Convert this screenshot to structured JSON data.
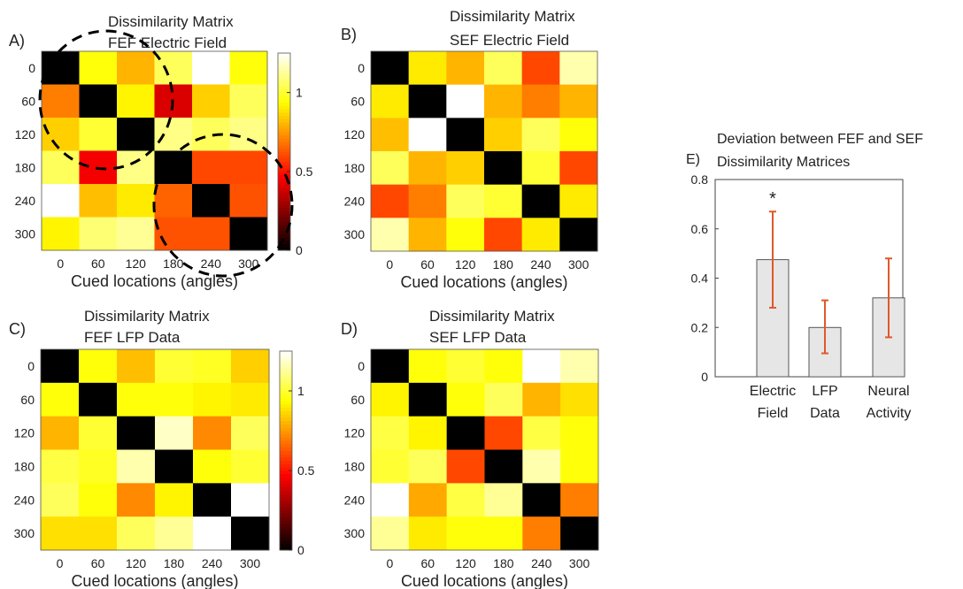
{
  "chart_data": [
    {
      "panel_id": "heatmap_A",
      "type": "heatmap",
      "panel_label": "A)",
      "title_lines": [
        "Dissimilarity Matrix",
        "FEF Electric Field"
      ],
      "xlabel": "Cued locations (angles)",
      "row_labels": [
        "0",
        "60",
        "120",
        "180",
        "240",
        "300"
      ],
      "col_labels": [
        "0",
        "60",
        "120",
        "180",
        "240",
        "300"
      ],
      "colorbar": true,
      "colorbar_ticks": [
        "1",
        "0.5",
        "0"
      ],
      "colorbar_tick_values": [
        1,
        0.5,
        0
      ],
      "color_range": [
        0,
        1.25
      ],
      "annotations": "two dashed circles around the 0-120 and 180-300 blocks",
      "matrix": [
        [
          0.0,
          0.95,
          0.8,
          1.05,
          1.25,
          0.95
        ],
        [
          0.7,
          0.0,
          0.92,
          0.4,
          0.85,
          1.05
        ],
        [
          0.85,
          1.0,
          0.0,
          1.1,
          1.05,
          1.1
        ],
        [
          1.05,
          0.45,
          1.1,
          0.0,
          0.6,
          0.6
        ],
        [
          1.25,
          0.82,
          0.9,
          0.65,
          0.0,
          0.62
        ],
        [
          0.92,
          1.08,
          1.12,
          0.62,
          0.62,
          0.0
        ]
      ]
    },
    {
      "panel_id": "heatmap_B",
      "type": "heatmap",
      "panel_label": "B)",
      "title_lines": [
        "Dissimilarity Matrix",
        "SEF Electric Field"
      ],
      "xlabel": "Cued locations (angles)",
      "row_labels": [
        "0",
        "60",
        "120",
        "180",
        "240",
        "300"
      ],
      "col_labels": [
        "0",
        "60",
        "120",
        "180",
        "240",
        "300"
      ],
      "colorbar": false,
      "color_range": [
        0,
        1.25
      ],
      "matrix": [
        [
          0.0,
          0.9,
          0.8,
          1.05,
          0.6,
          1.15
        ],
        [
          0.9,
          0.0,
          1.25,
          0.8,
          0.7,
          0.8
        ],
        [
          0.82,
          1.25,
          0.0,
          0.85,
          1.05,
          0.95
        ],
        [
          1.05,
          0.8,
          0.85,
          0.0,
          1.0,
          0.6
        ],
        [
          0.6,
          0.7,
          1.05,
          1.0,
          0.0,
          0.9
        ],
        [
          1.15,
          0.8,
          0.95,
          0.6,
          0.9,
          0.0
        ]
      ]
    },
    {
      "panel_id": "heatmap_C",
      "type": "heatmap",
      "panel_label": "C)",
      "title_lines": [
        "Dissimilarity Matrix",
        "FEF LFP Data"
      ],
      "xlabel": "Cued locations (angles)",
      "row_labels": [
        "0",
        "60",
        "120",
        "180",
        "240",
        "300"
      ],
      "col_labels": [
        "0",
        "60",
        "120",
        "180",
        "240",
        "300"
      ],
      "colorbar": true,
      "colorbar_ticks": [
        "1",
        "0.5",
        "0"
      ],
      "colorbar_tick_values": [
        1,
        0.5,
        0
      ],
      "color_range": [
        0,
        1.25
      ],
      "matrix": [
        [
          0.0,
          0.95,
          0.82,
          1.0,
          0.98,
          0.85
        ],
        [
          0.95,
          0.0,
          0.95,
          0.95,
          0.92,
          0.9
        ],
        [
          0.8,
          1.0,
          0.0,
          1.18,
          0.72,
          1.05
        ],
        [
          1.02,
          0.98,
          1.15,
          0.0,
          0.95,
          1.0
        ],
        [
          1.05,
          0.95,
          0.72,
          0.92,
          0.0,
          1.25
        ],
        [
          0.88,
          0.88,
          1.05,
          1.12,
          1.25,
          0.0
        ]
      ]
    },
    {
      "panel_id": "heatmap_D",
      "type": "heatmap",
      "panel_label": "D)",
      "title_lines": [
        "Dissimilarity Matrix",
        "SEF LFP Data"
      ],
      "xlabel": "Cued locations (angles)",
      "row_labels": [
        "0",
        "60",
        "120",
        "180",
        "240",
        "300"
      ],
      "col_labels": [
        "0",
        "60",
        "120",
        "180",
        "240",
        "300"
      ],
      "colorbar": false,
      "color_range": [
        0,
        1.25
      ],
      "matrix": [
        [
          0.0,
          0.95,
          1.0,
          0.95,
          1.25,
          1.15
        ],
        [
          0.92,
          0.0,
          0.95,
          1.05,
          0.8,
          0.88
        ],
        [
          1.02,
          0.92,
          0.0,
          0.6,
          1.02,
          0.95
        ],
        [
          1.0,
          1.05,
          0.6,
          0.0,
          1.15,
          0.95
        ],
        [
          1.25,
          0.78,
          1.02,
          1.12,
          0.0,
          0.7
        ],
        [
          1.12,
          0.9,
          0.95,
          0.95,
          0.7,
          0.0
        ]
      ]
    },
    {
      "panel_id": "bar_E",
      "type": "bar",
      "panel_label": "E)",
      "title_lines": [
        "Deviation between FEF and SEF",
        "Dissimilarity Matrices"
      ],
      "categories": [
        [
          "Electric",
          "Field"
        ],
        [
          "LFP",
          "Data"
        ],
        [
          "Neural",
          "Activity"
        ]
      ],
      "values": [
        0.475,
        0.2,
        0.32
      ],
      "error_low": [
        0.28,
        0.095,
        0.16
      ],
      "error_high": [
        0.67,
        0.31,
        0.48
      ],
      "significance_marks": [
        "*",
        "",
        ""
      ],
      "ylim": [
        0,
        0.8
      ],
      "yticks": [
        0,
        0.2,
        0.4,
        0.6,
        0.8
      ],
      "ytick_labels": [
        "0",
        "0.2",
        "0.4",
        "0.6",
        "0.8"
      ],
      "bar_color": "#e6e6e6",
      "error_color": "#e0592a"
    }
  ],
  "colors": {
    "colormap": "hot",
    "annotation_line": "#000000",
    "axis": "#333333"
  }
}
